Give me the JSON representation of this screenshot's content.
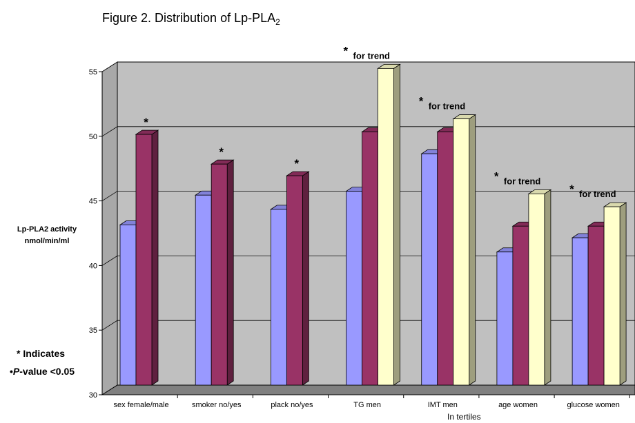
{
  "figure": {
    "title_main": "Figure 2. Distribution of Lp-PLA",
    "title_sub": "2"
  },
  "chart_data": {
    "type": "bar",
    "ylabel_lines": [
      "Lp-PLA2 activity",
      "nmol/min/ml"
    ],
    "xlabel": "In tertiles",
    "ylim": [
      30,
      55
    ],
    "yticks": [
      30,
      35,
      40,
      45,
      50,
      55
    ],
    "grid": true,
    "categories": [
      {
        "label": "sex female/male",
        "values": [
          42.4,
          49.4
        ],
        "annotation": "*"
      },
      {
        "label": "smoker no/yes",
        "values": [
          44.7,
          47.1
        ],
        "annotation": "*"
      },
      {
        "label": "plack no/yes",
        "values": [
          43.6,
          46.2
        ],
        "annotation": "*"
      },
      {
        "label": "TG men",
        "values": [
          45.0,
          49.6,
          54.5
        ],
        "annotation": "* for trend"
      },
      {
        "label": "IMT men",
        "values": [
          47.9,
          49.6,
          50.6
        ],
        "annotation": "* for trend"
      },
      {
        "label": "age women",
        "values": [
          40.3,
          42.3,
          44.8
        ],
        "annotation": "* for trend"
      },
      {
        "label": "glucose women",
        "values": [
          41.4,
          42.3,
          43.8
        ],
        "annotation": "* for trend"
      }
    ],
    "colors": {
      "bar1": "#9999ff",
      "bar2": "#993366",
      "bar3": "#ffffcc",
      "wall": "#c0c0c0",
      "floor": "#808080"
    }
  },
  "note": {
    "line1": "* Indicates",
    "bullet": "•",
    "p": "P",
    "rest": "-value <0.05"
  }
}
